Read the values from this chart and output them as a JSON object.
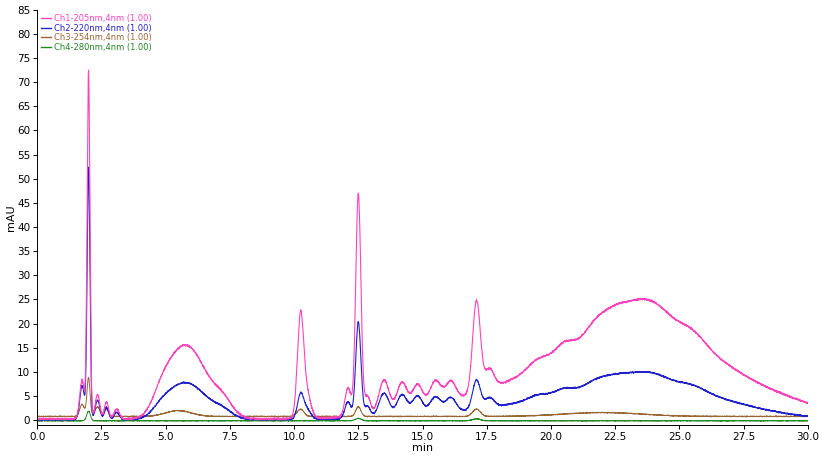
{
  "title": "",
  "ylabel": "mAU",
  "xlabel": "min",
  "xlim": [
    0.0,
    30.0
  ],
  "ylim": [
    -1,
    85
  ],
  "ytick_step": 5,
  "xticks": [
    0.0,
    2.5,
    5.0,
    7.5,
    10.0,
    12.5,
    15.0,
    17.5,
    20.0,
    22.5,
    25.0,
    27.5,
    30.0
  ],
  "background_color": "#ffffff",
  "fig_background": "#ffffff",
  "channels": [
    {
      "label": "Ch1-205nm,4nm (1.00)",
      "color": "#ff44bb",
      "lw": 0.8
    },
    {
      "label": "Ch2-220nm,4nm (1.00)",
      "color": "#2222cc",
      "lw": 0.8
    },
    {
      "label": "Ch3-254nm,4nm (1.00)",
      "color": "#996633",
      "lw": 0.7
    },
    {
      "label": "Ch4-280nm,4nm (1.00)",
      "color": "#228822",
      "lw": 0.7
    }
  ]
}
